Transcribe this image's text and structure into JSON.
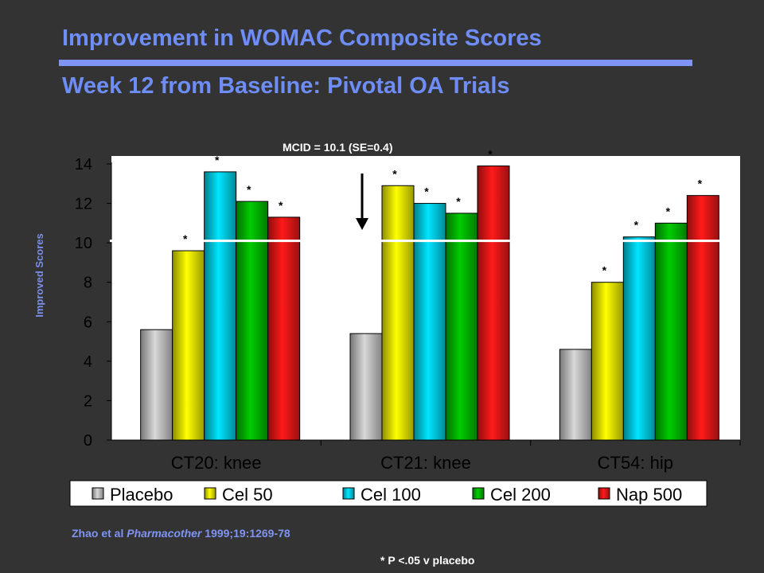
{
  "title": "Improvement in WOMAC Composite Scores",
  "subtitle": "Week 12 from Baseline: Pivotal OA Trials",
  "annotation_mcid": "MCID = 10.1 (SE=0.4)",
  "citation": {
    "prefix": "Zhao et al ",
    "journal": "Pharmacother",
    "suffix": " 1999;19:1269-78"
  },
  "footnote": "* P <.05 v  placebo",
  "colors": {
    "title": "#6f8df7",
    "background": "#333333",
    "Placebo": "#d8d8d8",
    "Cel 50": "#ffff00",
    "Cel 100": "#00e5ff",
    "Cel 200": "#00cc00",
    "Nap 500": "#ff1a1a"
  },
  "chart_data": {
    "type": "bar",
    "title": "",
    "xlabel": "",
    "ylabel": "Improved Scores",
    "ylim": [
      0,
      14
    ],
    "yticks": [
      0,
      2,
      4,
      6,
      8,
      10,
      12,
      14
    ],
    "grid": false,
    "legend_position": "bottom",
    "categories": [
      "CT20: knee",
      "CT21: knee",
      "CT54: hip"
    ],
    "series": [
      {
        "name": "Placebo",
        "values": [
          5.6,
          5.4,
          4.6
        ],
        "significant": [
          false,
          false,
          false
        ]
      },
      {
        "name": "Cel 50",
        "values": [
          9.6,
          12.9,
          8.0
        ],
        "significant": [
          true,
          true,
          true
        ]
      },
      {
        "name": "Cel 100",
        "values": [
          13.6,
          12.0,
          10.3
        ],
        "significant": [
          true,
          true,
          true
        ]
      },
      {
        "name": "Cel 200",
        "values": [
          12.1,
          11.5,
          11.0
        ],
        "significant": [
          true,
          true,
          true
        ]
      },
      {
        "name": "Nap 500",
        "values": [
          11.3,
          13.9,
          12.4
        ],
        "significant": [
          true,
          true,
          true
        ]
      }
    ],
    "significance_marker": "*",
    "reference_line": {
      "value": 10.1,
      "label": "MCID = 10.1 (SE=0.4)"
    }
  }
}
